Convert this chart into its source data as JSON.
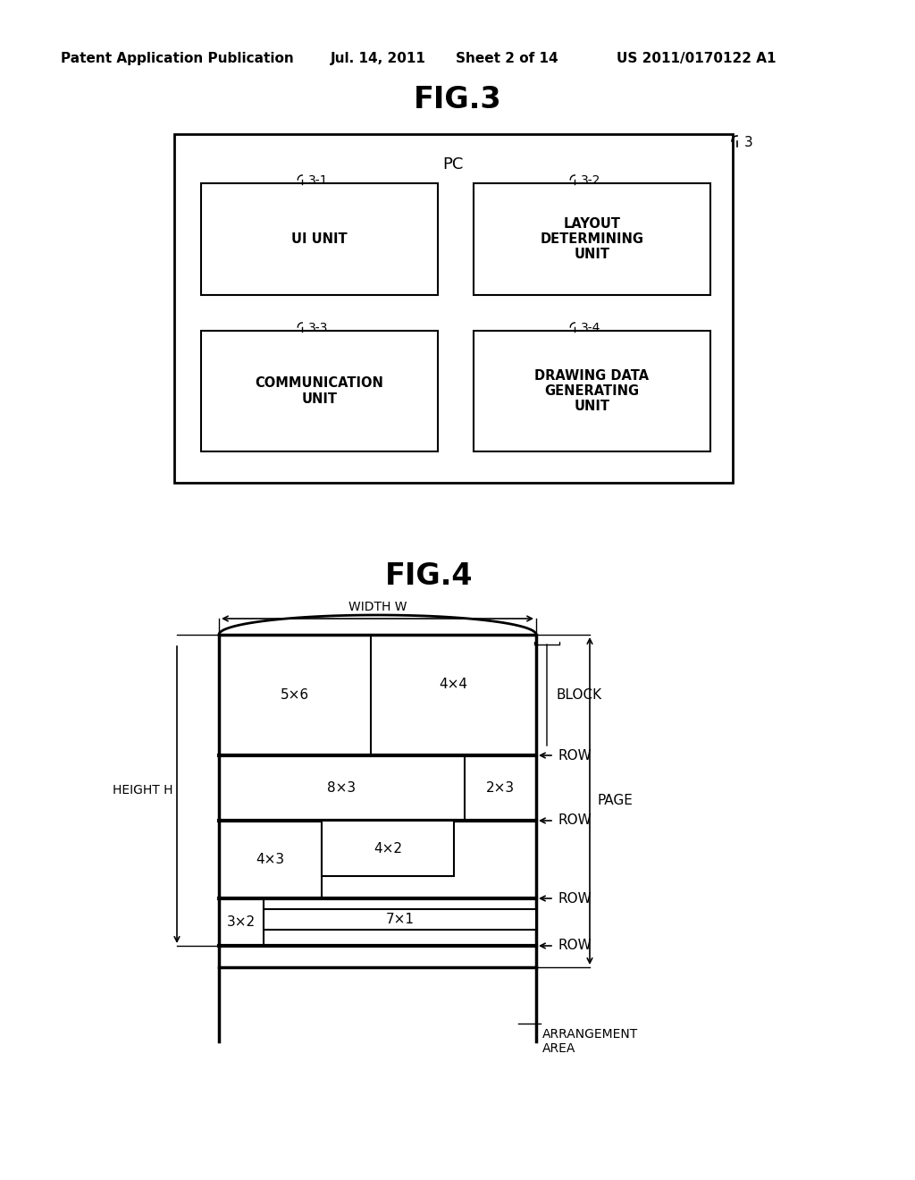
{
  "bg_color": "#ffffff",
  "header_text": "Patent Application Publication",
  "header_date": "Jul. 14, 2011",
  "header_sheet": "Sheet 2 of 14",
  "header_patent": "US 2011/0170122 A1",
  "fig3_title": "FIG.3",
  "fig4_title": "FIG.4",
  "font_size_header": 11,
  "font_size_title": 22,
  "font_size_label": 10,
  "font_size_box": 10,
  "font_size_pc": 12
}
